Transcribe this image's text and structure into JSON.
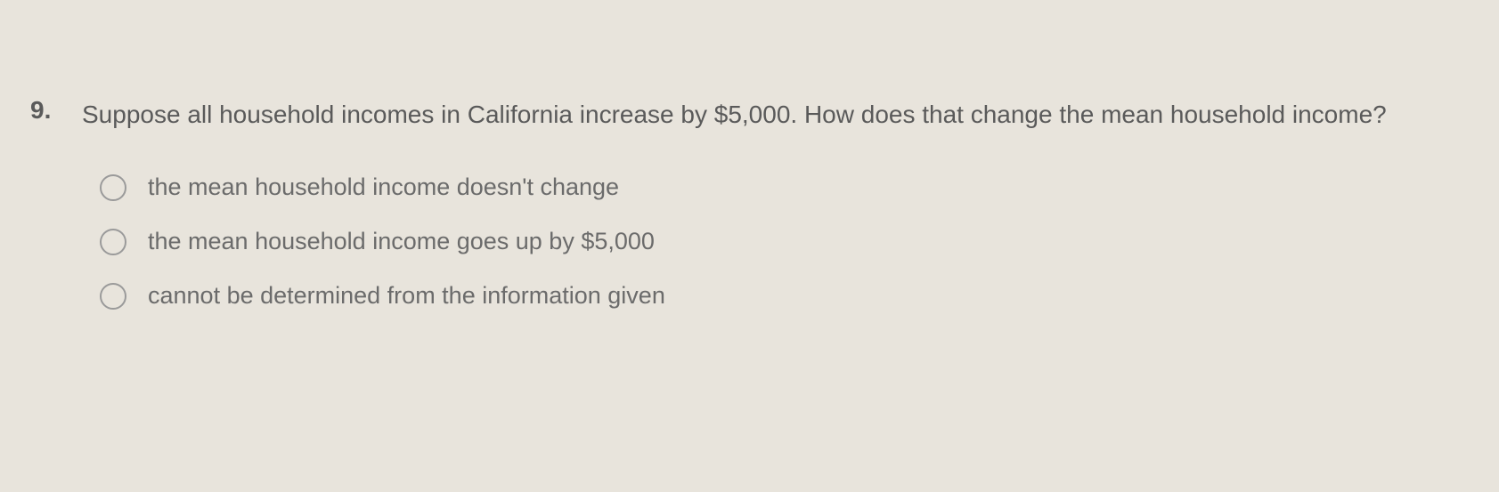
{
  "question": {
    "number": "9.",
    "text": "Suppose all household incomes in California increase by $5,000. How does that change the mean household income?",
    "options": [
      {
        "label": "the mean household income doesn't change",
        "selected": false
      },
      {
        "label": "the mean household income goes up by $5,000",
        "selected": false
      },
      {
        "label": "cannot be determined from the information given",
        "selected": false
      }
    ]
  },
  "styling": {
    "background_color": "#e8e4dc",
    "text_color": "#5a5a5a",
    "option_text_color": "#6b6b6b",
    "radio_border_color": "#9a9a9a",
    "question_fontsize": 28,
    "option_fontsize": 27
  }
}
